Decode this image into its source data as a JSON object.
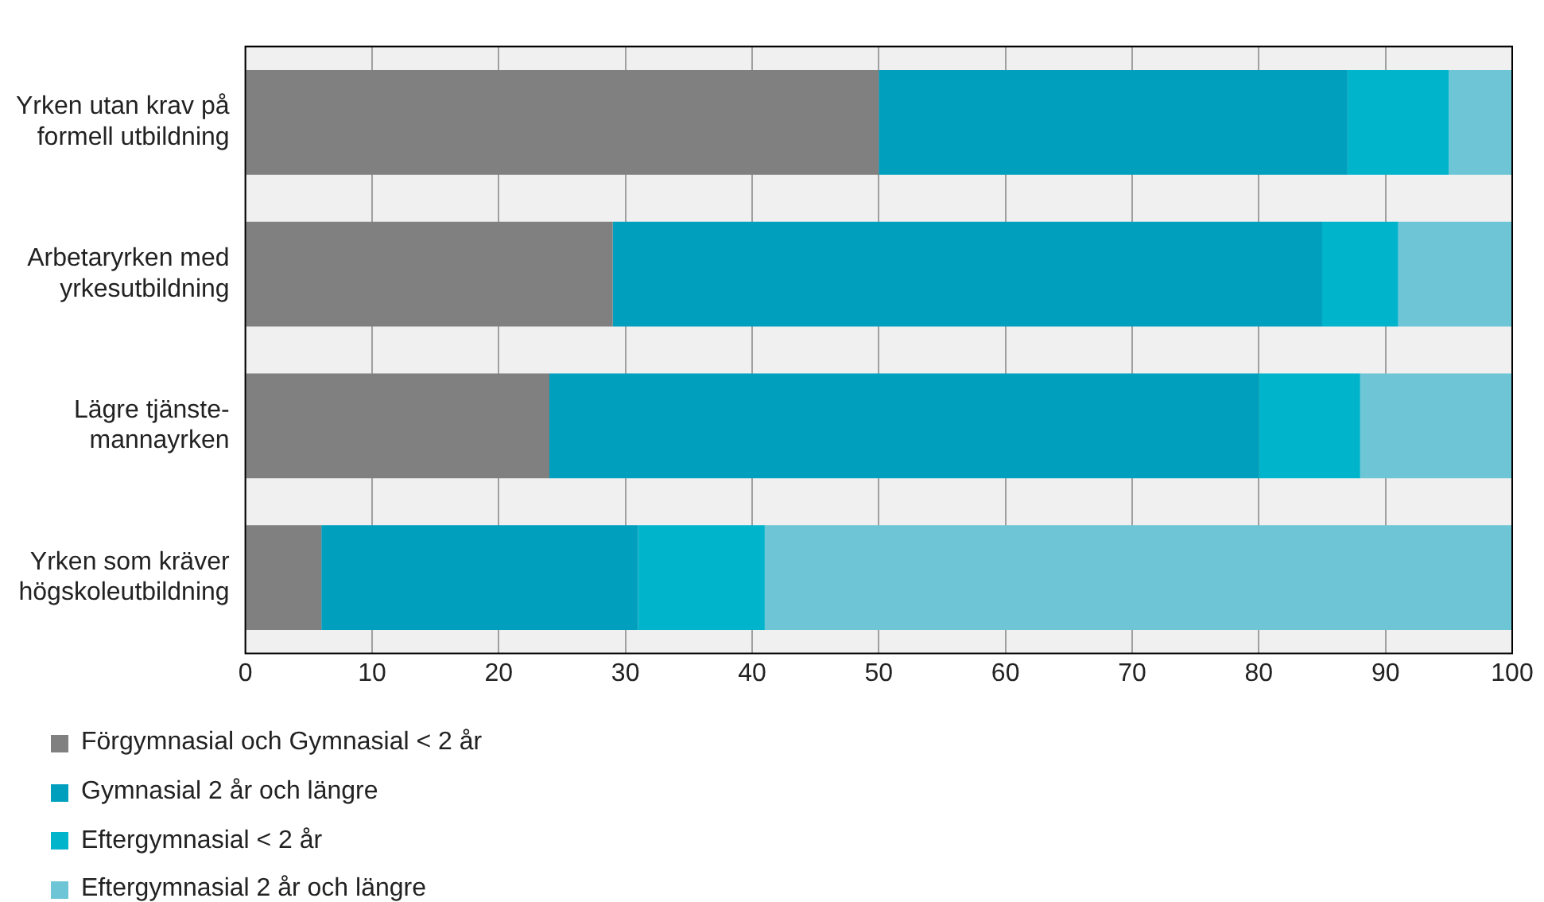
{
  "chart_data": {
    "type": "bar",
    "orientation": "horizontal",
    "stacked": true,
    "categories": [
      "Yrken utan krav på formell utbildning",
      "Arbetaryrken med yrkesutbildning",
      "Lägre tjänste-mannayrken",
      "Yrken som kräver högskoleutbildning"
    ],
    "series": [
      {
        "name": "Förgymnasial och Gymnasial < 2 år",
        "color": "#808080",
        "values": [
          50,
          29,
          24,
          6
        ]
      },
      {
        "name": "Gymnasial 2 år och längre",
        "color": "#009fbd",
        "values": [
          37,
          56,
          56,
          25
        ]
      },
      {
        "name": "Eftergymnasial < 2 år",
        "color": "#00b4cb",
        "values": [
          8,
          6,
          8,
          10
        ]
      },
      {
        "name": "Eftergymnasial 2 år och längre",
        "color": "#6ec5d6",
        "values": [
          5,
          9,
          12,
          59
        ]
      }
    ],
    "xlim": [
      0,
      100
    ],
    "xticks": [
      0,
      10,
      20,
      30,
      40,
      50,
      60,
      70,
      80,
      90,
      100
    ],
    "grid": "x",
    "legend": "bottom left"
  }
}
